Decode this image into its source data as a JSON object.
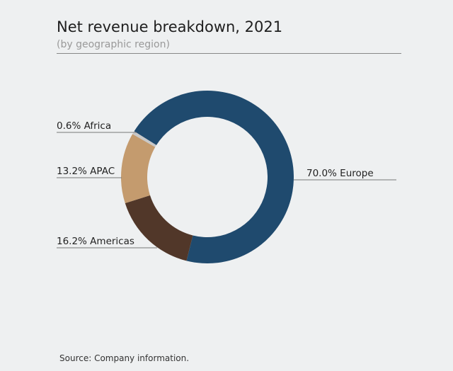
{
  "header": {
    "title": "Net revenue breakdown, 2021",
    "subtitle": "(by geographic region)"
  },
  "footer": {
    "source": "Source: Company information."
  },
  "chart_data": {
    "type": "pie",
    "donut": true,
    "title": "Net revenue breakdown, 2021",
    "subtitle": "(by geographic region)",
    "slices": [
      {
        "name": "Europe",
        "value": 70.0,
        "label": "70.0% Europe",
        "color": "#1f4a6e"
      },
      {
        "name": "Americas",
        "value": 16.2,
        "label": "16.2% Americas",
        "color": "#513729"
      },
      {
        "name": "APAC",
        "value": 13.2,
        "label": "13.2% APAC",
        "color": "#c49b6e"
      },
      {
        "name": "Africa",
        "value": 0.6,
        "label": "0.6% Africa",
        "color": "#c8c8c8"
      }
    ],
    "legend": "none"
  }
}
